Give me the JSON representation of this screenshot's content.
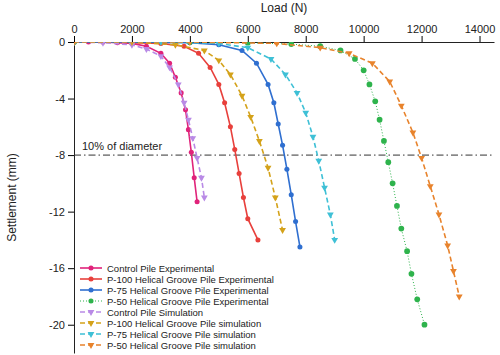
{
  "chart_data": {
    "type": "line",
    "x_label": "Load (N)",
    "y_label": "Settlement (mm)",
    "xlim": [
      0,
      14500
    ],
    "ylim": [
      -22,
      0
    ],
    "xticks": [
      0,
      2000,
      4000,
      6000,
      8000,
      10000,
      12000,
      14000
    ],
    "yticks": [
      0,
      -4,
      -8,
      -12,
      -16,
      -20
    ],
    "legend": "lower left",
    "annotations": [
      {
        "text": "10% of diameter",
        "y": -8,
        "line_style": "dashdot"
      }
    ],
    "series": [
      {
        "name": "Control Pile Experimental",
        "color": "#e0237a",
        "marker": "circle",
        "line_style": "solid",
        "x": [
          0,
          500,
          1000,
          1500,
          2000,
          2500,
          3000,
          3300,
          3500,
          3700,
          3850,
          3950,
          4050,
          4150,
          4250
        ],
        "values": [
          0,
          0,
          0,
          -0.05,
          -0.1,
          -0.3,
          -0.8,
          -1.5,
          -2.5,
          -3.6,
          -4.8,
          -6.2,
          -7.8,
          -9.6,
          -11.3
        ]
      },
      {
        "name": "P-100 Helical Groove Pile Experimental",
        "color": "#e8403c",
        "marker": "circle",
        "line_style": "solid",
        "x": [
          0,
          1000,
          2000,
          3000,
          3800,
          4300,
          4700,
          5000,
          5200,
          5400,
          5550,
          5700,
          5850,
          6000,
          6350
        ],
        "values": [
          0,
          0,
          -0.05,
          -0.1,
          -0.3,
          -0.8,
          -1.8,
          -3,
          -4.3,
          -6,
          -7.6,
          -9.3,
          -11,
          -12.5,
          -14
        ]
      },
      {
        "name": "P-75 Helical  Groove Pile Experimental",
        "color": "#2f6fd0",
        "marker": "circle",
        "line_style": "solid",
        "x": [
          0,
          2000,
          4000,
          5000,
          5800,
          6300,
          6700,
          6900,
          7050,
          7200,
          7350,
          7500,
          7650,
          7800
        ],
        "values": [
          0,
          0,
          -0.05,
          -0.2,
          -0.6,
          -1.5,
          -3,
          -4.3,
          -5.8,
          -7.3,
          -9,
          -10.8,
          -12.7,
          -14.5
        ]
      },
      {
        "name": "P-50 Helical Groove Pile Experimental",
        "color": "#2eb34c",
        "marker": "circle",
        "line_style": "dotted",
        "x": [
          0,
          2000,
          4000,
          6000,
          7500,
          8500,
          9200,
          9700,
          10000,
          10200,
          10400,
          10550,
          10700,
          10850,
          11000,
          11150,
          11300,
          11500,
          11650,
          11850,
          12100
        ],
        "values": [
          0,
          0,
          0,
          -0.05,
          -0.15,
          -0.3,
          -0.6,
          -1.2,
          -2,
          -3,
          -4.2,
          -5.5,
          -7,
          -8.5,
          -10,
          -11.6,
          -13.2,
          -14.8,
          -16.4,
          -18.2,
          -20
        ]
      },
      {
        "name": "Control Pile Simulation",
        "color": "#b98ae6",
        "marker": "triangle-down",
        "line_style": "dashed",
        "x": [
          0,
          1000,
          2000,
          2500,
          3000,
          3300,
          3600,
          3800,
          3950,
          4100,
          4250,
          4400,
          4500
        ],
        "values": [
          0,
          -0.05,
          -0.2,
          -0.5,
          -1,
          -1.8,
          -3,
          -4.3,
          -5.5,
          -6.8,
          -8.2,
          -9.6,
          -11
        ]
      },
      {
        "name": "P-100 Helical Groove Pile simulation",
        "color": "#d4a21a",
        "marker": "triangle-down",
        "line_style": "dashed",
        "x": [
          0,
          2000,
          3500,
          4500,
          5000,
          5400,
          5800,
          6100,
          6400,
          6700,
          6950,
          7200
        ],
        "values": [
          0,
          0,
          -0.2,
          -0.6,
          -1.3,
          -2.3,
          -3.8,
          -5.3,
          -7,
          -8.9,
          -11,
          -13.3
        ]
      },
      {
        "name": "P-75 Helical Groove Pile simulation",
        "color": "#3ec0d6",
        "marker": "triangle-down",
        "line_style": "dashed",
        "x": [
          0,
          3000,
          5000,
          6000,
          6800,
          7300,
          7700,
          8000,
          8250,
          8450,
          8650,
          8850,
          9000
        ],
        "values": [
          0,
          0,
          -0.1,
          -0.4,
          -1.2,
          -2.3,
          -3.6,
          -5,
          -6.7,
          -8.4,
          -10.3,
          -12.2,
          -14
        ]
      },
      {
        "name": "P-50 Helical Groove Pile simulation",
        "color": "#e8832c",
        "marker": "triangle-down",
        "line_style": "dashed",
        "x": [
          0,
          4000,
          7000,
          8500,
          9500,
          10300,
          10900,
          11300,
          11700,
          12000,
          12300,
          12600,
          12900,
          13100,
          13300
        ],
        "values": [
          0,
          0,
          -0.1,
          -0.4,
          -0.8,
          -1.5,
          -2.8,
          -4.5,
          -6.4,
          -8.2,
          -10.2,
          -12.2,
          -14.4,
          -16.2,
          -18
        ]
      }
    ]
  }
}
